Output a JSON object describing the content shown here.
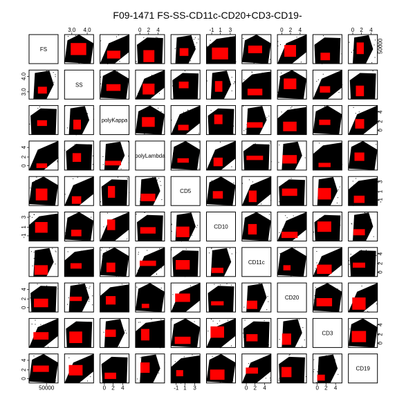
{
  "chart_data": {
    "type": "scatter",
    "title": "F09-1471 FS-SS-CD11c-CD20+CD3-CD19-",
    "variables": [
      "FS",
      "SS",
      "polyKappa",
      "polyLambda",
      "CD5",
      "CD10",
      "CD11c",
      "CD20",
      "CD3",
      "CD19"
    ],
    "colors": {
      "background_events": "#000000",
      "gated_events": "#ff0000",
      "panel_border": "#000000"
    },
    "tick_labels": {
      "FS": [
        "50000"
      ],
      "SS": [
        "3.0",
        "4.0"
      ],
      "polyKappa": [
        "0",
        "2",
        "4"
      ],
      "polyLambda": [
        "0",
        "2",
        "4"
      ],
      "CD5": [
        "-1",
        "1",
        "3"
      ],
      "CD10": [
        "-1",
        "1",
        "3"
      ],
      "CD11c": [
        "0",
        "2",
        "4"
      ],
      "CD20": [
        "0",
        "2",
        "4"
      ],
      "CD3": [
        "0",
        "2",
        "4"
      ],
      "CD19": [
        "0",
        "2",
        "4"
      ]
    },
    "axis_label_sides": {
      "top": [
        "SS",
        "polyLambda",
        "CD10",
        "CD20",
        "CD19"
      ],
      "bottom": [
        "FS",
        "polyKappa",
        "CD5",
        "CD11c",
        "CD3"
      ],
      "left": [
        "SS",
        "polyLambda",
        "CD10",
        "CD20",
        "CD19"
      ],
      "right": [
        "FS",
        "polyKappa",
        "CD5",
        "CD11c",
        "CD3"
      ]
    },
    "grid": false,
    "legend": "none"
  }
}
